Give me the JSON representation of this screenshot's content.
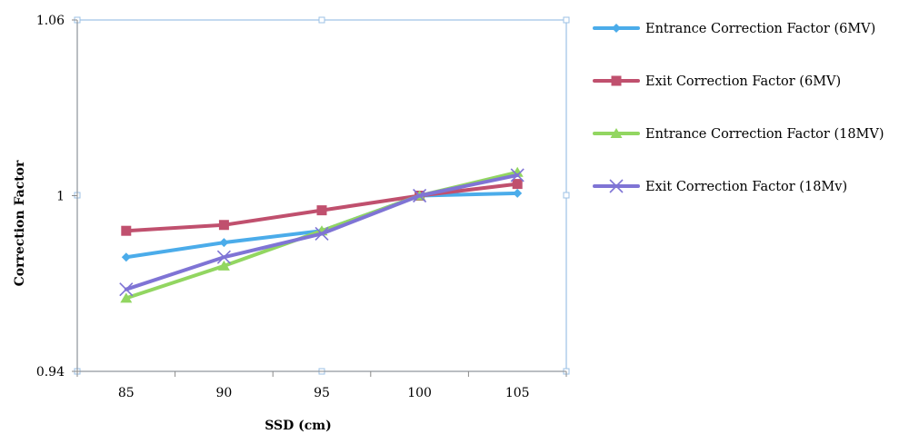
{
  "chart_data": {
    "type": "line",
    "xlabel": "SSD (cm)",
    "ylabel": "Correction Factor",
    "categories": [
      "85",
      "90",
      "95",
      "100",
      "105"
    ],
    "ylim": [
      0.94,
      1.06
    ],
    "yticks": [
      "0.94",
      "1",
      "1.06"
    ],
    "grid": false,
    "legend_position": "right",
    "series": [
      {
        "name": "Entrance Correction Factor (6MV)",
        "color": "#4bacea",
        "marker": "diamond",
        "values": [
          0.979,
          0.984,
          0.988,
          1.0,
          1.0008
        ]
      },
      {
        "name": "Exit Correction Factor (6MV)",
        "color": "#c0506e",
        "marker": "square",
        "values": [
          0.988,
          0.99,
          0.995,
          1.0,
          1.004
        ]
      },
      {
        "name": "Entrance Correction Factor (18MV)",
        "color": "#92d661",
        "marker": "triangle",
        "values": [
          0.965,
          0.976,
          0.988,
          1.0,
          1.008
        ]
      },
      {
        "name": "Exit Correction Factor (18Mv)",
        "color": "#7f74d5",
        "marker": "x",
        "values": [
          0.968,
          0.979,
          0.987,
          1.0,
          1.007
        ]
      }
    ]
  }
}
